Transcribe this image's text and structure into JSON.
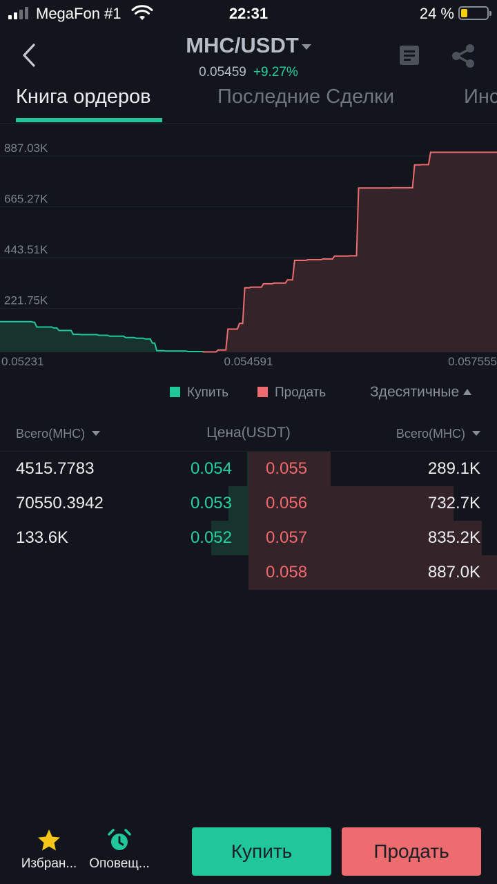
{
  "status_bar": {
    "carrier": "MegaFon #1",
    "time": "22:31",
    "battery": "24 %",
    "battery_level": 0.24
  },
  "header": {
    "pair": "MHC/USDT",
    "last_price": "0.05459",
    "change": "+9.27%"
  },
  "tabs": [
    {
      "label": "Книга ордеров"
    },
    {
      "label": "Последние Сделки"
    },
    {
      "label": "Инс"
    }
  ],
  "colors": {
    "buy": "#20c79b",
    "sell": "#ec6c70",
    "background": "#12161c"
  },
  "chart_data": {
    "type": "area",
    "y_tick_labels": [
      "887.03K",
      "665.27K",
      "443.51K",
      "221.75K"
    ],
    "y_ticks": [
      887030,
      665270,
      443510,
      221750
    ],
    "x_tick_labels": [
      "0.05231",
      "0.054591",
      "0.057555"
    ],
    "ylim": [
      0,
      950000
    ],
    "xlim": [
      0.05231,
      0.0579
    ],
    "grid": true,
    "series": [
      {
        "name": "Купить",
        "color": "#20c79b",
        "x": [
          0.05231,
          0.05266,
          0.0527,
          0.05289,
          0.05295,
          0.05311,
          0.0532,
          0.0534,
          0.05352,
          0.0537,
          0.05382,
          0.05392,
          0.054,
          0.05405,
          0.05415,
          0.0544,
          0.05459
        ],
        "y": [
          133600,
          131000,
          110000,
          106000,
          95000,
          78000,
          77000,
          74000,
          70000,
          64000,
          61000,
          58000,
          40000,
          7000,
          5000,
          3000,
          1500
        ]
      },
      {
        "name": "Продать",
        "color": "#ec6c70",
        "x": [
          0.05459,
          0.05474,
          0.05485,
          0.05498,
          0.05504,
          0.05511,
          0.05525,
          0.05537,
          0.05552,
          0.0556,
          0.05575,
          0.05592,
          0.05605,
          0.05622,
          0.05632,
          0.0567,
          0.05695,
          0.05703,
          0.05713,
          0.0579
        ],
        "y": [
          1500,
          10000,
          101000,
          126000,
          281000,
          284000,
          299000,
          302000,
          316000,
          401000,
          404000,
          407000,
          420000,
          421000,
          717000,
          718000,
          818000,
          819000,
          873000,
          874000
        ]
      }
    ]
  },
  "legend": {
    "buy": "Купить",
    "sell": "Продать",
    "decimals": "Здесятичные"
  },
  "book": {
    "header_left": "Всего(MHC)",
    "header_mid": "Цена(USDT)",
    "header_right": "Всего(MHC)",
    "bids": [
      {
        "total": "4515.7783",
        "price": "0.054",
        "depth": 0.005
      },
      {
        "total": "70550.3942",
        "price": "0.053",
        "depth": 0.08
      },
      {
        "total": "133.6K",
        "price": "0.052",
        "depth": 0.15
      }
    ],
    "asks": [
      {
        "price": "0.055",
        "total": "289.1K",
        "depth": 0.33
      },
      {
        "price": "0.056",
        "total": "732.7K",
        "depth": 0.825
      },
      {
        "price": "0.057",
        "total": "835.2K",
        "depth": 0.94
      },
      {
        "price": "0.058",
        "total": "887.0K",
        "depth": 1.0
      }
    ]
  },
  "bottom": {
    "favorites": "Избран...",
    "alerts": "Оповещ...",
    "buy": "Купить",
    "sell": "Продать"
  }
}
